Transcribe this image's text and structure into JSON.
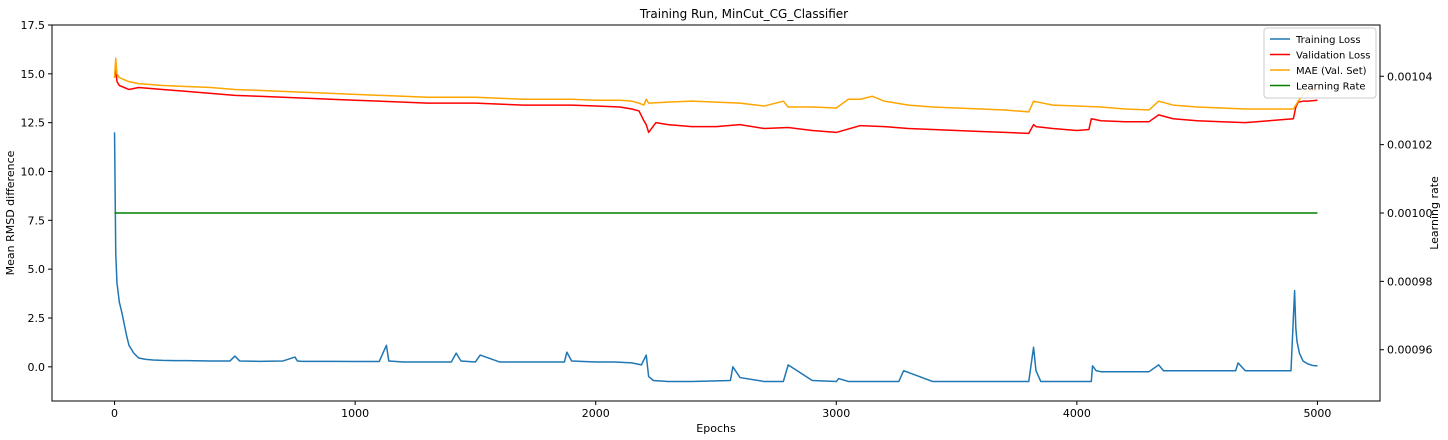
{
  "chart_data": {
    "type": "line",
    "title": "Training Run, MinCut_CG_Classifier",
    "xlabel": "Epochs",
    "ylabel": "Mean RMSD difference",
    "y2label": "Learning rate",
    "xlim": [
      -260,
      5260
    ],
    "ylim": [
      -1.75,
      17.5
    ],
    "y2lim": [
      0.000945,
      0.001055
    ],
    "xticks": [
      0,
      1000,
      2000,
      3000,
      4000,
      5000
    ],
    "xtick_labels": [
      "0",
      "1000",
      "2000",
      "3000",
      "4000",
      "5000"
    ],
    "yticks": [
      0.0,
      2.5,
      5.0,
      7.5,
      10.0,
      12.5,
      15.0,
      17.5
    ],
    "ytick_labels": [
      "0.0",
      "2.5",
      "5.0",
      "7.5",
      "10.0",
      "12.5",
      "15.0",
      "17.5"
    ],
    "y2ticks": [
      0.00096,
      0.00098,
      0.001,
      0.00102,
      0.00104
    ],
    "y2tick_labels": [
      "0.00096",
      "0.00098",
      "0.00100",
      "0.00102",
      "0.00104"
    ],
    "grid": false,
    "legend_position": "top-right",
    "series": [
      {
        "name": "Training Loss",
        "color": "#1f77b4",
        "axis": "left",
        "x": [
          0,
          5,
          10,
          20,
          30,
          40,
          50,
          60,
          80,
          100,
          130,
          160,
          200,
          250,
          300,
          400,
          480,
          500,
          520,
          600,
          700,
          750,
          760,
          780,
          900,
          1000,
          1100,
          1130,
          1140,
          1200,
          1300,
          1400,
          1420,
          1440,
          1500,
          1520,
          1600,
          1700,
          1800,
          1870,
          1880,
          1900,
          2000,
          2080,
          2150,
          2190,
          2210,
          2220,
          2240,
          2300,
          2400,
          2560,
          2570,
          2600,
          2700,
          2780,
          2800,
          2900,
          3000,
          3010,
          3050,
          3100,
          3200,
          3260,
          3280,
          3400,
          3500,
          3600,
          3700,
          3800,
          3820,
          3830,
          3850,
          3900,
          4000,
          4060,
          4065,
          4080,
          4100,
          4200,
          4300,
          4340,
          4360,
          4400,
          4500,
          4600,
          4660,
          4670,
          4700,
          4800,
          4890,
          4905,
          4910,
          4915,
          4925,
          4940,
          4960,
          4980,
          5000
        ],
        "y": [
          12.0,
          5.8,
          4.3,
          3.3,
          2.8,
          2.2,
          1.6,
          1.1,
          0.7,
          0.45,
          0.38,
          0.35,
          0.33,
          0.32,
          0.32,
          0.3,
          0.3,
          0.55,
          0.3,
          0.28,
          0.3,
          0.5,
          0.3,
          0.28,
          0.28,
          0.27,
          0.27,
          1.1,
          0.3,
          0.25,
          0.25,
          0.25,
          0.7,
          0.3,
          0.25,
          0.6,
          0.25,
          0.25,
          0.25,
          0.25,
          0.75,
          0.3,
          0.25,
          0.25,
          0.2,
          0.1,
          0.6,
          -0.5,
          -0.7,
          -0.75,
          -0.75,
          -0.7,
          0.0,
          -0.55,
          -0.75,
          -0.75,
          0.1,
          -0.7,
          -0.75,
          -0.6,
          -0.75,
          -0.75,
          -0.75,
          -0.75,
          -0.2,
          -0.75,
          -0.75,
          -0.75,
          -0.75,
          -0.75,
          1.0,
          -0.2,
          -0.75,
          -0.75,
          -0.75,
          -0.75,
          0.05,
          -0.2,
          -0.25,
          -0.25,
          -0.25,
          0.1,
          -0.2,
          -0.2,
          -0.2,
          -0.2,
          -0.2,
          0.2,
          -0.2,
          -0.2,
          -0.2,
          3.9,
          2.0,
          1.3,
          0.7,
          0.3,
          0.15,
          0.07,
          0.05
        ]
      },
      {
        "name": "Validation Loss",
        "color": "#ff0000",
        "axis": "left",
        "x": [
          0,
          5,
          10,
          20,
          40,
          60,
          100,
          200,
          300,
          400,
          500,
          600,
          700,
          800,
          900,
          1000,
          1100,
          1200,
          1300,
          1400,
          1500,
          1600,
          1700,
          1800,
          1900,
          2000,
          2100,
          2150,
          2180,
          2200,
          2210,
          2220,
          2250,
          2300,
          2400,
          2500,
          2600,
          2700,
          2800,
          2900,
          3000,
          3100,
          3200,
          3300,
          3400,
          3500,
          3600,
          3700,
          3800,
          3820,
          3830,
          3900,
          4000,
          4050,
          4060,
          4100,
          4200,
          4300,
          4340,
          4400,
          4500,
          4600,
          4700,
          4800,
          4900,
          4910,
          4920,
          4940,
          4960,
          5000
        ],
        "y": [
          14.8,
          15.3,
          14.6,
          14.4,
          14.3,
          14.2,
          14.3,
          14.2,
          14.1,
          14.0,
          13.9,
          13.85,
          13.8,
          13.75,
          13.7,
          13.65,
          13.6,
          13.55,
          13.5,
          13.5,
          13.5,
          13.45,
          13.4,
          13.4,
          13.4,
          13.35,
          13.3,
          13.2,
          13.1,
          12.6,
          12.4,
          12.0,
          12.5,
          12.4,
          12.3,
          12.3,
          12.4,
          12.2,
          12.25,
          12.1,
          12.0,
          12.35,
          12.3,
          12.2,
          12.15,
          12.1,
          12.05,
          12.0,
          11.95,
          12.4,
          12.3,
          12.2,
          12.1,
          12.15,
          12.7,
          12.6,
          12.55,
          12.55,
          12.9,
          12.7,
          12.6,
          12.55,
          12.5,
          12.6,
          12.7,
          13.3,
          13.55,
          13.6,
          13.6,
          13.65
        ]
      },
      {
        "name": "MAE (Val. Set)",
        "color": "#ffa500",
        "axis": "left",
        "x": [
          0,
          5,
          10,
          20,
          40,
          60,
          100,
          200,
          300,
          400,
          500,
          600,
          700,
          800,
          900,
          1000,
          1100,
          1200,
          1300,
          1400,
          1500,
          1600,
          1700,
          1800,
          1900,
          2000,
          2100,
          2150,
          2180,
          2200,
          2210,
          2220,
          2300,
          2400,
          2500,
          2600,
          2700,
          2780,
          2800,
          2900,
          3000,
          3050,
          3100,
          3150,
          3200,
          3300,
          3400,
          3500,
          3600,
          3700,
          3800,
          3820,
          3900,
          4000,
          4100,
          4200,
          4300,
          4340,
          4400,
          4500,
          4600,
          4700,
          4800,
          4900,
          4920,
          4950,
          5000
        ],
        "y": [
          14.8,
          15.8,
          15.0,
          14.8,
          14.7,
          14.6,
          14.5,
          14.4,
          14.35,
          14.3,
          14.2,
          14.15,
          14.1,
          14.05,
          14.0,
          13.95,
          13.9,
          13.85,
          13.8,
          13.8,
          13.8,
          13.75,
          13.7,
          13.7,
          13.7,
          13.65,
          13.65,
          13.6,
          13.5,
          13.4,
          13.7,
          13.5,
          13.55,
          13.6,
          13.55,
          13.5,
          13.35,
          13.6,
          13.3,
          13.3,
          13.25,
          13.7,
          13.7,
          13.85,
          13.6,
          13.4,
          13.3,
          13.25,
          13.2,
          13.15,
          13.05,
          13.6,
          13.4,
          13.35,
          13.3,
          13.2,
          13.15,
          13.6,
          13.4,
          13.3,
          13.25,
          13.2,
          13.2,
          13.2,
          13.6,
          14.1,
          14.2
        ]
      },
      {
        "name": "Learning Rate",
        "color": "#008000",
        "axis": "right",
        "x": [
          0,
          5000
        ],
        "y": [
          0.001,
          0.001
        ]
      }
    ]
  }
}
